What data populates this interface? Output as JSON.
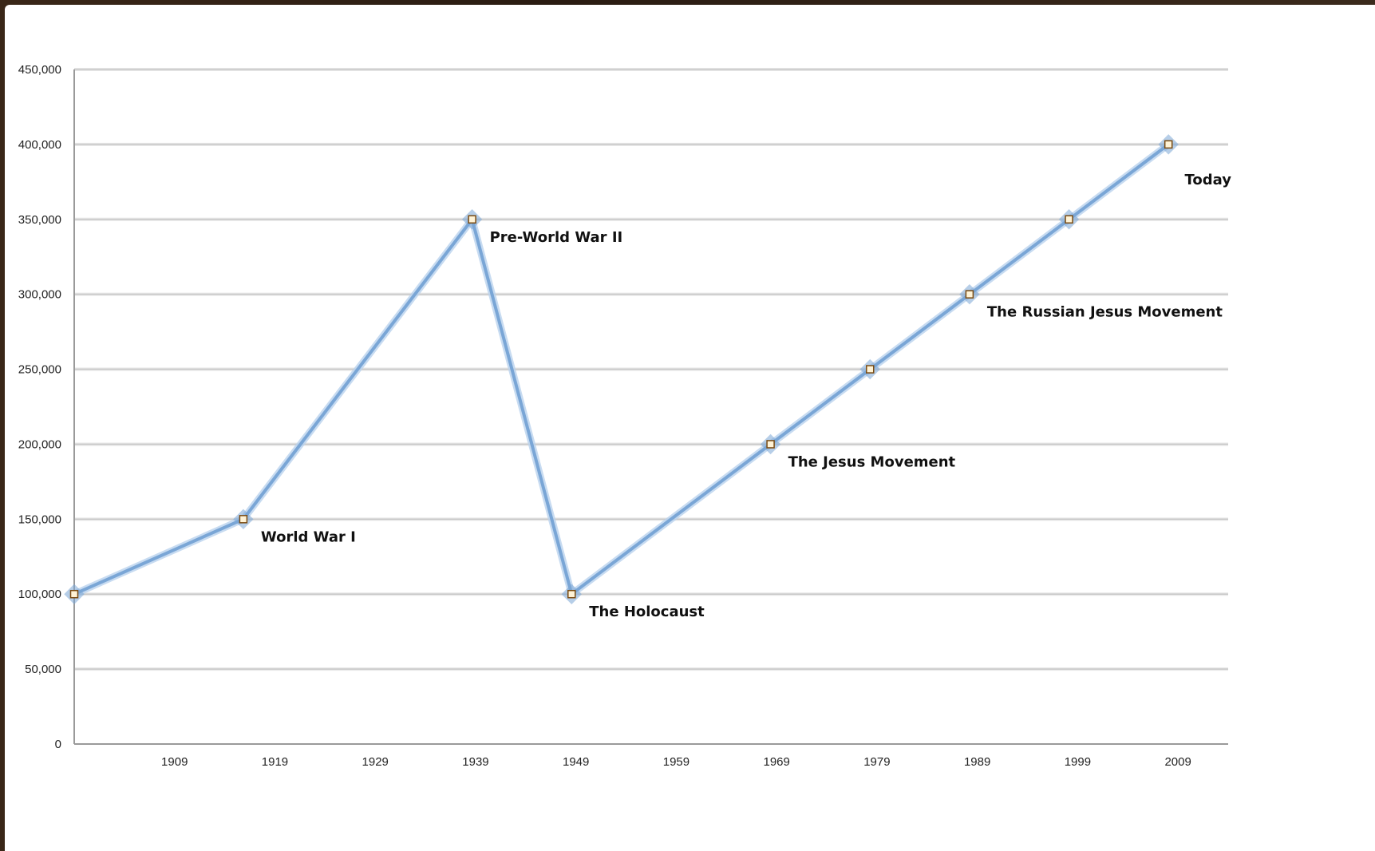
{
  "chart_data": {
    "type": "line",
    "title": "",
    "xlabel": "",
    "ylabel": "",
    "x": [
      1899,
      1916,
      1939,
      1949,
      1969,
      1979,
      1989,
      1999,
      2009
    ],
    "series": [
      {
        "values": [
          100000,
          150000,
          350000,
          100000,
          200000,
          250000,
          300000,
          350000,
          400000
        ]
      }
    ],
    "x_ticks": [
      "1909",
      "1919",
      "1929",
      "1939",
      "1949",
      "1959",
      "1969",
      "1979",
      "1989",
      "1999",
      "2009"
    ],
    "y_ticks": [
      "0",
      "50,000",
      "100,000",
      "150,000",
      "200,000",
      "250,000",
      "300,000",
      "350,000",
      "400,000",
      "450,000"
    ],
    "xlim": [
      1899,
      2015
    ],
    "ylim": [
      0,
      450000
    ],
    "grid": true,
    "legend": "none",
    "annotations": [
      {
        "text": "World War I",
        "x": 1916,
        "y": 150000
      },
      {
        "text": "Pre-World War II",
        "x": 1939,
        "y": 350000
      },
      {
        "text": "The Holocaust",
        "x": 1949,
        "y": 100000
      },
      {
        "text": "The Jesus Movement",
        "x": 1969,
        "y": 200000
      },
      {
        "text": "The Russian Jesus Movement",
        "x": 1989,
        "y": 300000
      },
      {
        "text": "Today",
        "x": 2015,
        "y": 400000
      }
    ],
    "colors": {
      "line": "#7aa6d6",
      "line_glow": "#b9d2ee",
      "marker_fill": "#fff3d6",
      "marker_stroke": "#7a4b12",
      "gridline": "#c8c8c8",
      "axis": "#9a9a9a"
    }
  }
}
